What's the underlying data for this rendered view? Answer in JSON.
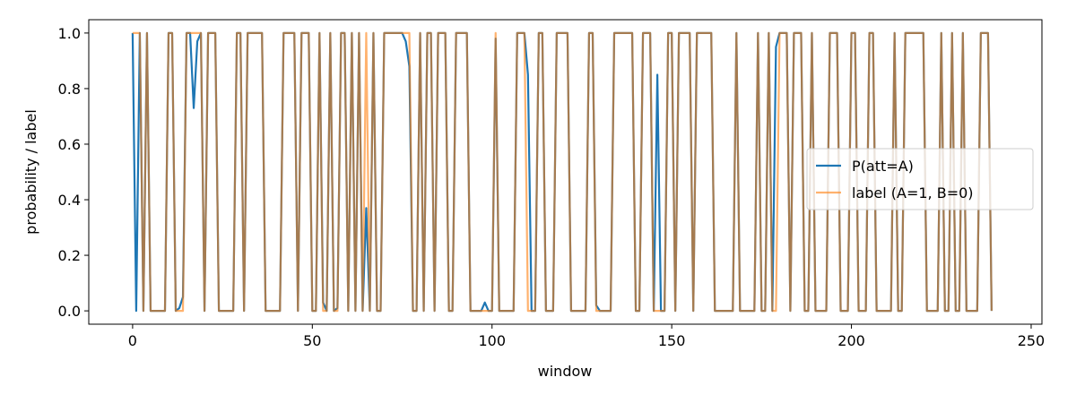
{
  "chart_data": {
    "type": "line",
    "xlabel": "window",
    "ylabel": "probability / label",
    "x": [
      0,
      1,
      2,
      3,
      4,
      5,
      6,
      7,
      8,
      9,
      10,
      11,
      12,
      13,
      14,
      15,
      16,
      17,
      18,
      19,
      20,
      21,
      22,
      23,
      24,
      25,
      26,
      27,
      28,
      29,
      30,
      31,
      32,
      33,
      34,
      35,
      36,
      37,
      38,
      39,
      40,
      41,
      42,
      43,
      44,
      45,
      46,
      47,
      48,
      49,
      50,
      51,
      52,
      53,
      54,
      55,
      56,
      57,
      58,
      59,
      60,
      61,
      62,
      63,
      64,
      65,
      66,
      67,
      68,
      69,
      70,
      71,
      72,
      73,
      74,
      75,
      76,
      77,
      78,
      79,
      80,
      81,
      82,
      83,
      84,
      85,
      86,
      87,
      88,
      89,
      90,
      91,
      92,
      93,
      94,
      95,
      96,
      97,
      98,
      99,
      100,
      101,
      102,
      103,
      104,
      105,
      106,
      107,
      108,
      109,
      110,
      111,
      112,
      113,
      114,
      115,
      116,
      117,
      118,
      119,
      120,
      121,
      122,
      123,
      124,
      125,
      126,
      127,
      128,
      129,
      130,
      131,
      132,
      133,
      134,
      135,
      136,
      137,
      138,
      139,
      140,
      141,
      142,
      143,
      144,
      145,
      146,
      147,
      148,
      149,
      150,
      151,
      152,
      153,
      154,
      155,
      156,
      157,
      158,
      159,
      160,
      161,
      162,
      163,
      164,
      165,
      166,
      167,
      168,
      169,
      170,
      171,
      172,
      173,
      174,
      175,
      176,
      177,
      178,
      179,
      180,
      181,
      182,
      183,
      184,
      185,
      186,
      187,
      188,
      189,
      190,
      191,
      192,
      193,
      194,
      195,
      196,
      197,
      198,
      199,
      200,
      201,
      202,
      203,
      204,
      205,
      206,
      207,
      208,
      209,
      210,
      211,
      212,
      213,
      214,
      215,
      216,
      217,
      218,
      219,
      220,
      221,
      222,
      223,
      224,
      225,
      226,
      227,
      228,
      229,
      230,
      231,
      232,
      233,
      234,
      235,
      236,
      237,
      238,
      239
    ],
    "series": [
      {
        "name": "P(att=A)",
        "color": "#1f77b4",
        "opacity": 1,
        "values": [
          1,
          0,
          1,
          0,
          1,
          0,
          0,
          0,
          0,
          0,
          1,
          1,
          0,
          0.01,
          0.05,
          1,
          1,
          0.73,
          0.97,
          1,
          0,
          1,
          1,
          1,
          0,
          0,
          0,
          0,
          0,
          1,
          1,
          0,
          1,
          1,
          1,
          1,
          1,
          0,
          0,
          0,
          0,
          0,
          1,
          1,
          1,
          1,
          0,
          1,
          1,
          1,
          0,
          0,
          1,
          0.03,
          0,
          1,
          0,
          0.01,
          1,
          1,
          0,
          1,
          0,
          1,
          0,
          0.37,
          0,
          1,
          0,
          0,
          1,
          1,
          1,
          1,
          1,
          1,
          0.97,
          0.88,
          0,
          0,
          1,
          0,
          1,
          1,
          0,
          1,
          1,
          1,
          0,
          0,
          1,
          1,
          1,
          1,
          0,
          0,
          0,
          0,
          0.03,
          0,
          0,
          0.98,
          0,
          0,
          0,
          0,
          0,
          1,
          1,
          1,
          0.85,
          0,
          0,
          1,
          1,
          0,
          0,
          0,
          1,
          1,
          1,
          1,
          0,
          0,
          0,
          0,
          0,
          1,
          1,
          0.02,
          0,
          0,
          0,
          0,
          1,
          1,
          1,
          1,
          1,
          1,
          0,
          0,
          1,
          1,
          1,
          0,
          0.85,
          0,
          0,
          1,
          1,
          0,
          1,
          1,
          1,
          1,
          0,
          1,
          1,
          1,
          1,
          1,
          0,
          0,
          0,
          0,
          0,
          0,
          1,
          0,
          0,
          0,
          0,
          0,
          1,
          0,
          0,
          1,
          0,
          0.95,
          1,
          1,
          1,
          0,
          1,
          1,
          1,
          0,
          0,
          1,
          0,
          0,
          0,
          0,
          1,
          1,
          1,
          0,
          0,
          0,
          1,
          1,
          0,
          0,
          0,
          1,
          1,
          0,
          0,
          0,
          0,
          0,
          1,
          0,
          0,
          1,
          1,
          1,
          1,
          1,
          1,
          0,
          0,
          0,
          0,
          1,
          0,
          0,
          1,
          0,
          0,
          1,
          0,
          0,
          0,
          0,
          1,
          1,
          1,
          0
        ]
      },
      {
        "name": "label (A=1, B=0)",
        "color": "#ff7f0e",
        "opacity": 0.6,
        "values": [
          1,
          1,
          1,
          0,
          1,
          0,
          0,
          0,
          0,
          0,
          1,
          1,
          0,
          0,
          0,
          1,
          1,
          1,
          1,
          1,
          0,
          1,
          1,
          1,
          0,
          0,
          0,
          0,
          0,
          1,
          1,
          0,
          1,
          1,
          1,
          1,
          1,
          0,
          0,
          0,
          0,
          0,
          1,
          1,
          1,
          1,
          0,
          1,
          1,
          1,
          0,
          0,
          1,
          0,
          0,
          1,
          0,
          0,
          1,
          1,
          0,
          1,
          0,
          1,
          0,
          1,
          0,
          1,
          0,
          0,
          1,
          1,
          1,
          1,
          1,
          1,
          1,
          1,
          0,
          0,
          1,
          0,
          1,
          1,
          0,
          1,
          1,
          1,
          0,
          0,
          1,
          1,
          1,
          1,
          0,
          0,
          0,
          0,
          0,
          0,
          0,
          1,
          0,
          0,
          0,
          0,
          0,
          1,
          1,
          1,
          0,
          0,
          0,
          1,
          1,
          0,
          0,
          0,
          1,
          1,
          1,
          1,
          0,
          0,
          0,
          0,
          0,
          1,
          1,
          0,
          0,
          0,
          0,
          0,
          1,
          1,
          1,
          1,
          1,
          1,
          0,
          0,
          1,
          1,
          1,
          0,
          0,
          0,
          0,
          1,
          1,
          0,
          1,
          1,
          1,
          1,
          0,
          1,
          1,
          1,
          1,
          1,
          0,
          0,
          0,
          0,
          0,
          0,
          1,
          0,
          0,
          0,
          0,
          0,
          1,
          0,
          0,
          1,
          0,
          0,
          1,
          1,
          1,
          0,
          1,
          1,
          1,
          0,
          0,
          1,
          0,
          0,
          0,
          0,
          1,
          1,
          1,
          0,
          0,
          0,
          1,
          1,
          0,
          0,
          0,
          1,
          1,
          0,
          0,
          0,
          0,
          0,
          1,
          0,
          0,
          1,
          1,
          1,
          1,
          1,
          1,
          0,
          0,
          0,
          0,
          1,
          0,
          0,
          1,
          0,
          0,
          1,
          0,
          0,
          0,
          0,
          1,
          1,
          1,
          0
        ]
      }
    ],
    "xlim": [
      -12.2,
      253
    ],
    "ylim": [
      -0.048,
      1.048
    ],
    "xticks": [
      0,
      50,
      100,
      150,
      200,
      250
    ],
    "yticks": [
      {
        "value": 0,
        "label": "0.0"
      },
      0.2,
      0.4,
      0.6,
      0.8,
      {
        "value": 1,
        "label": "1.0"
      }
    ],
    "legend": "center right"
  }
}
